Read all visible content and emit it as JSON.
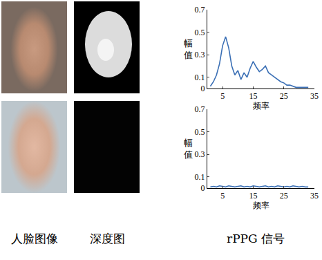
{
  "column_labels": [
    "人脸图像",
    "深度图",
    "rPPG 信号"
  ],
  "chart_data": [
    {
      "type": "line",
      "xlabel": "频率",
      "ylabel": "幅值",
      "color": "#3a6fb5",
      "x": [
        1,
        2,
        3,
        4,
        5,
        6,
        7,
        8,
        9,
        10,
        11,
        12,
        13,
        14,
        15,
        16,
        17,
        18,
        19,
        20,
        21,
        22,
        23,
        24,
        25,
        26,
        27,
        28,
        29,
        30,
        31,
        32,
        33
      ],
      "values": [
        0.02,
        0.06,
        0.12,
        0.22,
        0.38,
        0.46,
        0.36,
        0.2,
        0.12,
        0.16,
        0.08,
        0.14,
        0.1,
        0.18,
        0.24,
        0.19,
        0.15,
        0.17,
        0.2,
        0.14,
        0.12,
        0.1,
        0.08,
        0.06,
        0.05,
        0.03,
        0.03,
        0.02,
        0.01,
        0.01,
        0.01,
        0.01,
        0.01
      ],
      "xlim": [
        0,
        35
      ],
      "xticks": [
        5,
        15,
        25,
        35
      ],
      "ylim": [
        0,
        0.7
      ],
      "yticks": [
        0,
        0.1,
        0.3,
        0.5,
        0.7
      ]
    },
    {
      "type": "line",
      "xlabel": "频率",
      "ylabel": "幅值",
      "color": "#3a6fb5",
      "x": [
        1,
        2,
        3,
        4,
        5,
        6,
        7,
        8,
        9,
        10,
        11,
        12,
        13,
        14,
        15,
        16,
        17,
        18,
        19,
        20,
        21,
        22,
        23,
        24,
        25,
        26,
        27,
        28,
        29,
        30,
        31,
        32,
        33
      ],
      "values": [
        0.01,
        0.015,
        0.01,
        0.02,
        0.015,
        0.01,
        0.02,
        0.015,
        0.01,
        0.015,
        0.02,
        0.01,
        0.015,
        0.01,
        0.02,
        0.015,
        0.01,
        0.015,
        0.02,
        0.01,
        0.015,
        0.01,
        0.02,
        0.015,
        0.01,
        0.015,
        0.01,
        0.02,
        0.015,
        0.01,
        0.015,
        0.01,
        0.01
      ],
      "xlim": [
        0,
        35
      ],
      "xticks": [
        5,
        15,
        25,
        35
      ],
      "ylim": [
        0,
        0.7
      ],
      "yticks": [
        0,
        0.1,
        0.3,
        0.5,
        0.7
      ]
    }
  ]
}
